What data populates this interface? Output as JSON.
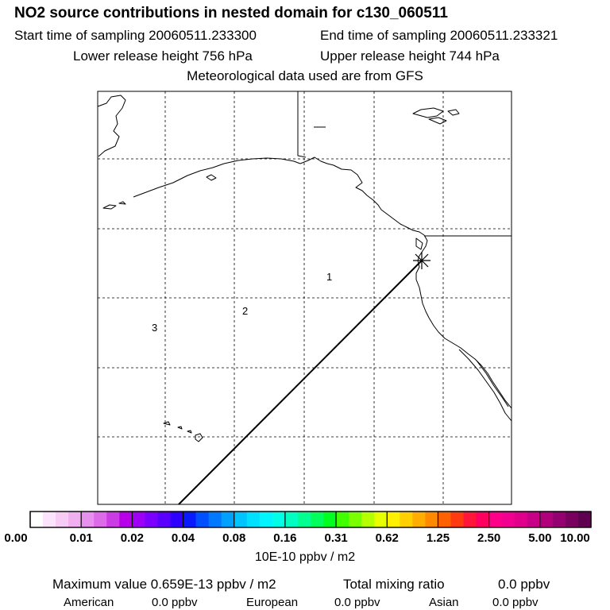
{
  "header": {
    "title": "NO2 source contributions in nested domain for c130_060511",
    "start_sampling": "Start time of sampling 20060511.233300",
    "end_sampling": "End time of sampling 20060511.233321",
    "lower_release": "Lower release height  756 hPa",
    "upper_release": "Upper release height  744 hPa",
    "met_data": "Meteorological data used are from GFS"
  },
  "map": {
    "region_labels": [
      "1",
      "2",
      "3"
    ],
    "release_marker": "asterisk-icon",
    "colors": {
      "coastline": "#000000",
      "gridline": "#000000",
      "trajectory": "#000000"
    }
  },
  "colorbar": {
    "tick_labels": [
      "0.00",
      "0.01",
      "0.02",
      "0.04",
      "0.08",
      "0.16",
      "0.31",
      "0.62",
      "1.25",
      "2.50",
      "5.00",
      "10.00"
    ],
    "colors": [
      "#ffffff",
      "#fbe4fb",
      "#f6cbf6",
      "#f0b0f0",
      "#e890ee",
      "#dd6ae8",
      "#cc3ce4",
      "#b800e8",
      "#9d00f4",
      "#7c00ff",
      "#5900ff",
      "#2f00ff",
      "#0a1aff",
      "#0050ff",
      "#0078ff",
      "#00a0ff",
      "#00c4ff",
      "#00e0ff",
      "#00f5ff",
      "#00ffe6",
      "#00ffc0",
      "#00ff90",
      "#00ff5a",
      "#00ff20",
      "#40ff00",
      "#7aff00",
      "#b4ff00",
      "#e8ff00",
      "#fff000",
      "#ffcf00",
      "#ffad00",
      "#ff8a00",
      "#ff6000",
      "#ff3a10",
      "#ff1638",
      "#ff0060",
      "#ff0088",
      "#f20090",
      "#e0008c",
      "#c80088",
      "#b0007c",
      "#940070",
      "#7a0060",
      "#600050"
    ],
    "units": "10E-10 ppbv / m2"
  },
  "footer": {
    "max_value": "Maximum value  0.659E-13 ppbv / m2",
    "total_label": "Total mixing ratio",
    "total_value": "0.0 ppbv",
    "regions": [
      {
        "name": "American",
        "value": "0.0 ppbv"
      },
      {
        "name": "European",
        "value": "0.0 ppbv"
      },
      {
        "name": "Asian",
        "value": "0.0 ppbv"
      }
    ]
  }
}
